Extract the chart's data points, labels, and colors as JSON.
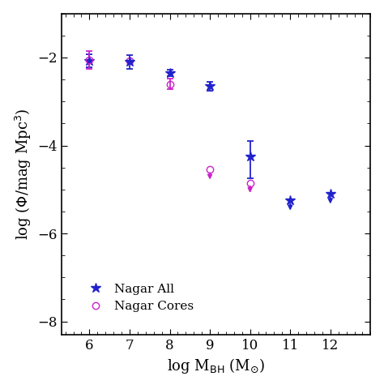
{
  "nagar_all": {
    "x": [
      6,
      7,
      8,
      9,
      10,
      11,
      12
    ],
    "y": [
      -2.07,
      -2.1,
      -2.35,
      -2.65,
      -4.25,
      -5.25,
      -5.1
    ],
    "yerr_lo": [
      0.15,
      0.15,
      0.08,
      0.1,
      0.5,
      0.12,
      0.12
    ],
    "yerr_hi": [
      0.15,
      0.15,
      0.08,
      0.1,
      0.35,
      0.0,
      0.0
    ],
    "upper_limit": [
      false,
      false,
      false,
      false,
      false,
      true,
      true
    ],
    "color": "#2222cc",
    "marker": "*",
    "markersize": 9,
    "label": "Nagar All"
  },
  "nagar_cores": {
    "x": [
      6,
      7,
      8,
      9,
      10
    ],
    "y": [
      -2.05,
      -2.08,
      -2.6,
      -4.55,
      -4.85
    ],
    "yerr_lo": [
      0.2,
      0.0,
      0.12,
      0.15,
      0.15
    ],
    "yerr_hi": [
      0.2,
      0.0,
      0.12,
      0.0,
      0.0
    ],
    "upper_limit": [
      false,
      false,
      false,
      true,
      true
    ],
    "color": "#cc22cc",
    "marker": "o",
    "markersize": 6,
    "label": "Nagar Cores"
  },
  "xlim": [
    5.3,
    13.0
  ],
  "ylim": [
    -8.3,
    -1.0
  ],
  "xticks": [
    6,
    7,
    8,
    9,
    10,
    11,
    12
  ],
  "yticks": [
    -2,
    -4,
    -6,
    -8
  ],
  "xlabel": "log M$_{\\mathrm{BH}}$ (M$_{\\odot}$)",
  "ylabel": "log ($\\Phi$/mag Mpc$^{3}$)",
  "figsize": [
    4.74,
    4.8
  ],
  "dpi": 100
}
